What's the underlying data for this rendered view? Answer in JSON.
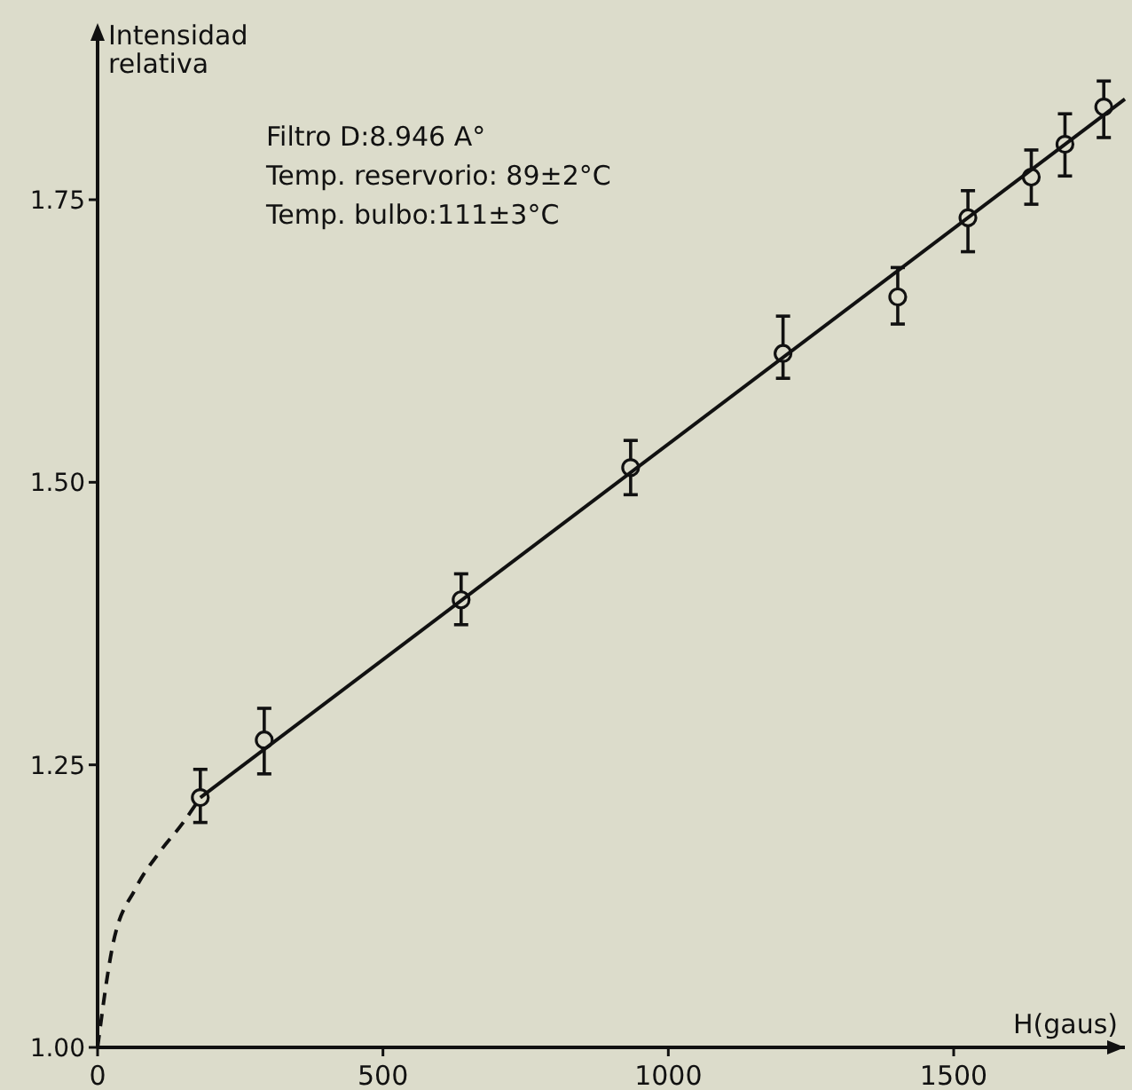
{
  "chart_data": {
    "type": "scatter",
    "xlabel": "H(gaus)",
    "ylabel": "Intensidad relativa",
    "annotations": [
      "Filtro D:8.946 A°",
      "Temp. reservorio: 89±2°C",
      "Temp. bulbo:111±3°C"
    ],
    "xlim": [
      0,
      1800
    ],
    "ylim": [
      1,
      1.9
    ],
    "xticks": [
      0,
      500,
      1000,
      1500
    ],
    "yticks": [
      {
        "value": 1,
        "label": "1.00"
      },
      1.25,
      {
        "value": 1.5,
        "label": "1.50"
      },
      1.75
    ],
    "grid": false,
    "series": [
      {
        "color": "#111111",
        "marker": "circle",
        "x": [
          180,
          292,
          637,
          934,
          1201,
          1402,
          1525,
          1636,
          1695,
          1763
        ],
        "values": [
          1.221,
          1.272,
          1.396,
          1.513,
          1.614,
          1.664,
          1.734,
          1.77,
          1.799,
          1.832
        ],
        "errors": [
          [
            1.199,
            1.246
          ],
          [
            1.242,
            1.3
          ],
          [
            1.374,
            1.419
          ],
          [
            1.489,
            1.537
          ],
          [
            1.592,
            1.647
          ],
          [
            1.64,
            1.69
          ],
          [
            1.704,
            1.758
          ],
          [
            1.746,
            1.794
          ],
          [
            1.771,
            1.826
          ],
          [
            1.805,
            1.855
          ]
        ]
      },
      {
        "type": "line",
        "color": "#111111",
        "line_style": "solid",
        "x": [
          180,
          1800
        ],
        "values": [
          1.221,
          1.839
        ]
      },
      {
        "type": "line",
        "color": "#111111",
        "line_style": "dashed",
        "x": [
          0,
          26,
          67,
          109,
          150,
          180
        ],
        "values": [
          1,
          1.089,
          1.141,
          1.173,
          1.199,
          1.221
        ]
      }
    ]
  }
}
